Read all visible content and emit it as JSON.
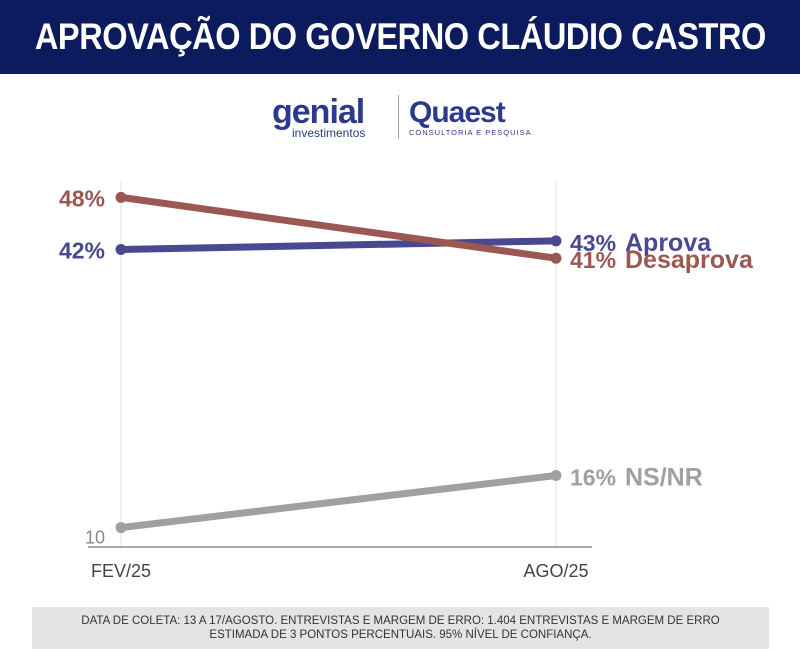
{
  "header": {
    "title": "APROVAÇÃO DO GOVERNO CLÁUDIO CASTRO"
  },
  "logos": {
    "genial_brand": "genial",
    "genial_sub": "investimentos",
    "quaest_brand": "Quaest",
    "quaest_sub": "CONSULTORIA E PESQUISA"
  },
  "chart_data": {
    "type": "line",
    "categories": [
      "FEV/25",
      "AGO/25"
    ],
    "series": [
      {
        "name": "Aprova",
        "values": [
          42,
          43
        ],
        "color": "#4a4890",
        "labels": [
          "42%",
          "43%"
        ]
      },
      {
        "name": "Desaprova",
        "values": [
          48,
          41
        ],
        "color": "#9b5852",
        "labels": [
          "48%",
          "41%"
        ]
      },
      {
        "name": "NS/NR",
        "values": [
          10,
          16
        ],
        "color": "#a0a0a0",
        "labels": [
          "10",
          "16%"
        ]
      }
    ],
    "ylim": [
      8,
      50
    ],
    "grid": false
  },
  "footer": {
    "note": "DATA DE COLETA: 13 A 17/AGOSTO. ENTREVISTAS E MARGEM DE ERRO: 1.404 ENTREVISTAS E MARGEM DE ERRO ESTIMADA DE 3 PONTOS PERCENTUAIS. 95% NÍVEL DE CONFIANÇA."
  }
}
